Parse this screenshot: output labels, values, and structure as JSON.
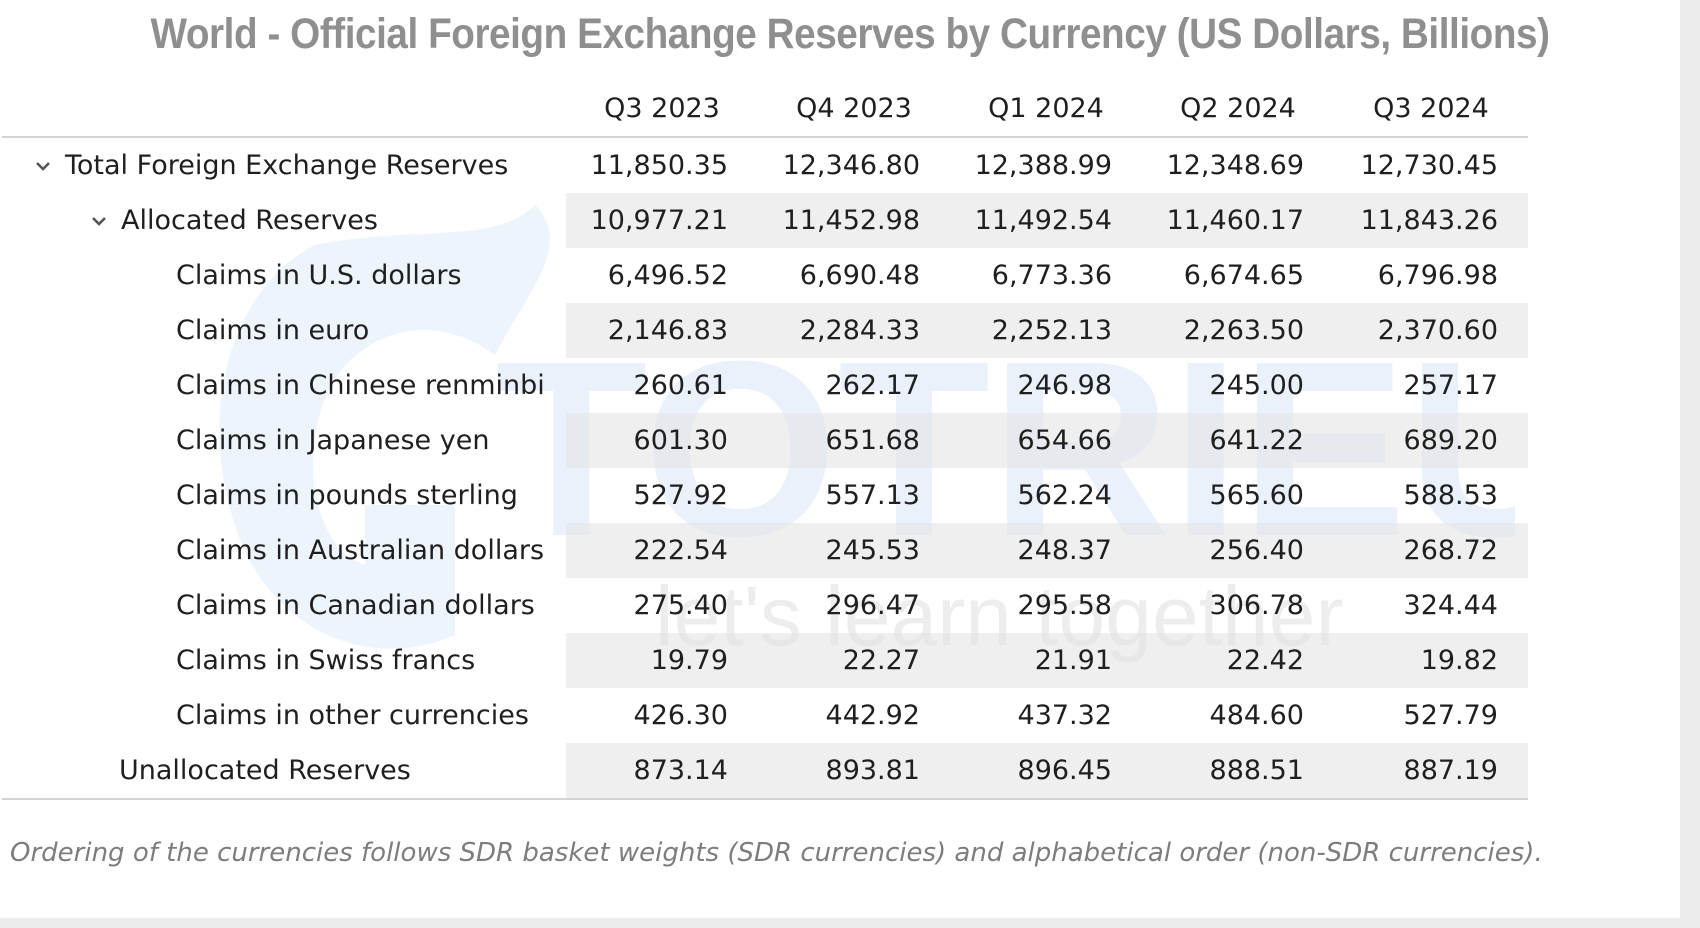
{
  "title": "World - Official Foreign Exchange Reserves by Currency (US Dollars, Billions)",
  "watermark": {
    "brand": "TOTRIEU",
    "tagline": "let's learn together"
  },
  "footnote": "Ordering of the currencies follows SDR basket weights (SDR currencies) and alphabetical order (non-SDR currencies).",
  "chart_data": {
    "type": "table",
    "title": "World - Official Foreign Exchange Reserves by Currency (US Dollars, Billions)",
    "columns": [
      "Q3 2023",
      "Q4 2023",
      "Q1 2024",
      "Q2 2024",
      "Q3 2024"
    ],
    "rows": [
      {
        "label": "Total Foreign Exchange Reserves",
        "values": [
          "11,850.35",
          "12,346.80",
          "12,388.99",
          "12,348.69",
          "12,730.45"
        ]
      },
      {
        "label": "Allocated Reserves",
        "values": [
          "10,977.21",
          "11,452.98",
          "11,492.54",
          "11,460.17",
          "11,843.26"
        ]
      },
      {
        "label": "Claims in U.S. dollars",
        "values": [
          "6,496.52",
          "6,690.48",
          "6,773.36",
          "6,674.65",
          "6,796.98"
        ]
      },
      {
        "label": "Claims in euro",
        "values": [
          "2,146.83",
          "2,284.33",
          "2,252.13",
          "2,263.50",
          "2,370.60"
        ]
      },
      {
        "label": "Claims in Chinese renminbi",
        "values": [
          "260.61",
          "262.17",
          "246.98",
          "245.00",
          "257.17"
        ]
      },
      {
        "label": "Claims in Japanese yen",
        "values": [
          "601.30",
          "651.68",
          "654.66",
          "641.22",
          "689.20"
        ]
      },
      {
        "label": "Claims in pounds sterling",
        "values": [
          "527.92",
          "557.13",
          "562.24",
          "565.60",
          "588.53"
        ]
      },
      {
        "label": "Claims in Australian dollars",
        "values": [
          "222.54",
          "245.53",
          "248.37",
          "256.40",
          "268.72"
        ]
      },
      {
        "label": "Claims in Canadian dollars",
        "values": [
          "275.40",
          "296.47",
          "295.58",
          "306.78",
          "324.44"
        ]
      },
      {
        "label": "Claims in Swiss francs",
        "values": [
          "19.79",
          "22.27",
          "21.91",
          "22.42",
          "19.82"
        ]
      },
      {
        "label": "Claims in other currencies",
        "values": [
          "426.30",
          "442.92",
          "437.32",
          "484.60",
          "527.79"
        ]
      },
      {
        "label": "Unallocated Reserves",
        "values": [
          "873.14",
          "893.81",
          "896.45",
          "888.51",
          "887.19"
        ]
      }
    ]
  }
}
